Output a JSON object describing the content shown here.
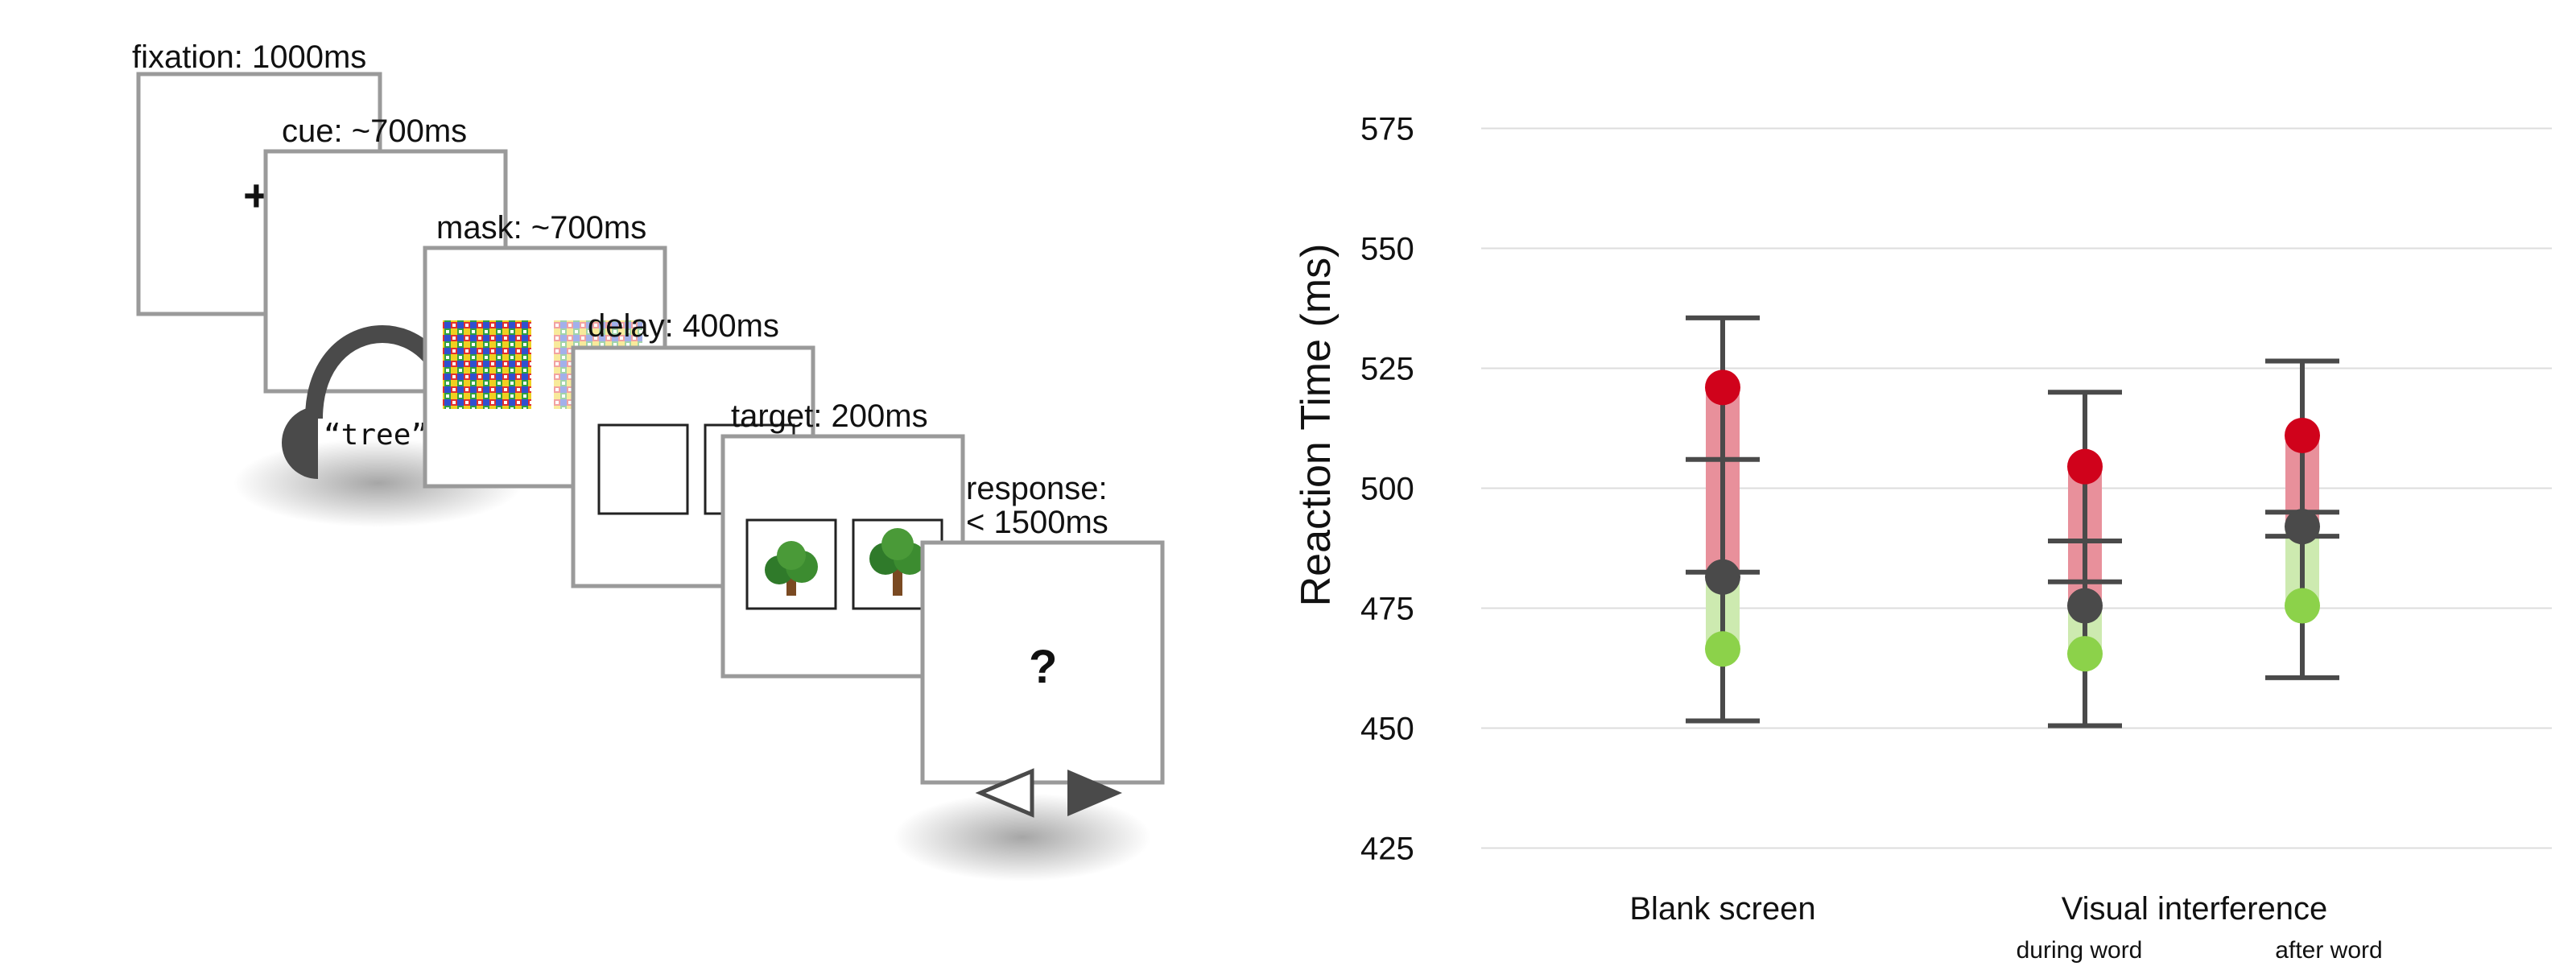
{
  "paradigm": {
    "fixation": "fixation: 1000ms",
    "cue": "cue: ~700ms",
    "mask": "mask: ~700ms",
    "delay": "delay: 400ms",
    "target": "target: 200ms",
    "response_line1": "response:",
    "response_line2": "< 1500ms",
    "fixation_symbol": "+",
    "cue_word": "“tree”",
    "question_mark": "?",
    "icons": [
      "headphones-icon",
      "tree-icon",
      "left-arrow-icon",
      "right-arrow-icon"
    ],
    "colors": {
      "frame": "#9a9a9a",
      "dark": "#444444"
    }
  },
  "chart_data": {
    "type": "scatter",
    "ylabel": "Reaction Time (ms)",
    "ylim": [
      412.5,
      580
    ],
    "yticks": [
      425,
      450,
      475,
      500,
      525,
      550,
      575
    ],
    "ytick_labels": [
      "425",
      "450",
      "475",
      "500",
      "525",
      "550",
      "575"
    ],
    "grid": true,
    "categories": [
      {
        "label": "Blank screen",
        "sublabel": ""
      },
      {
        "label": "Visual interference",
        "sublabel": "during word"
      },
      {
        "label": "",
        "sublabel": "after word"
      }
    ],
    "points": [
      {
        "red": 521,
        "gray": 481.5,
        "green": 466.5,
        "whisker_low": 451.5,
        "whisker_high": 535.5,
        "cap_upper": 506,
        "cap_lower": 482.5
      },
      {
        "red": 504.5,
        "gray": 475.5,
        "green": 465.5,
        "whisker_low": 450.5,
        "whisker_high": 520,
        "cap_upper": 489,
        "cap_lower": 480.5
      },
      {
        "red": 511,
        "gray": 492,
        "green": 475.5,
        "whisker_low": 460.5,
        "whisker_high": 526.5,
        "cap_upper": 495,
        "cap_lower": 490
      }
    ],
    "colors": {
      "red": "#d0021b",
      "red_band": "#e8909b",
      "gray": "#4a4a4a",
      "green": "#8cd24a",
      "green_band": "#cdeab0",
      "whisker": "#4a4a4a",
      "grid": "#dddddd"
    }
  }
}
